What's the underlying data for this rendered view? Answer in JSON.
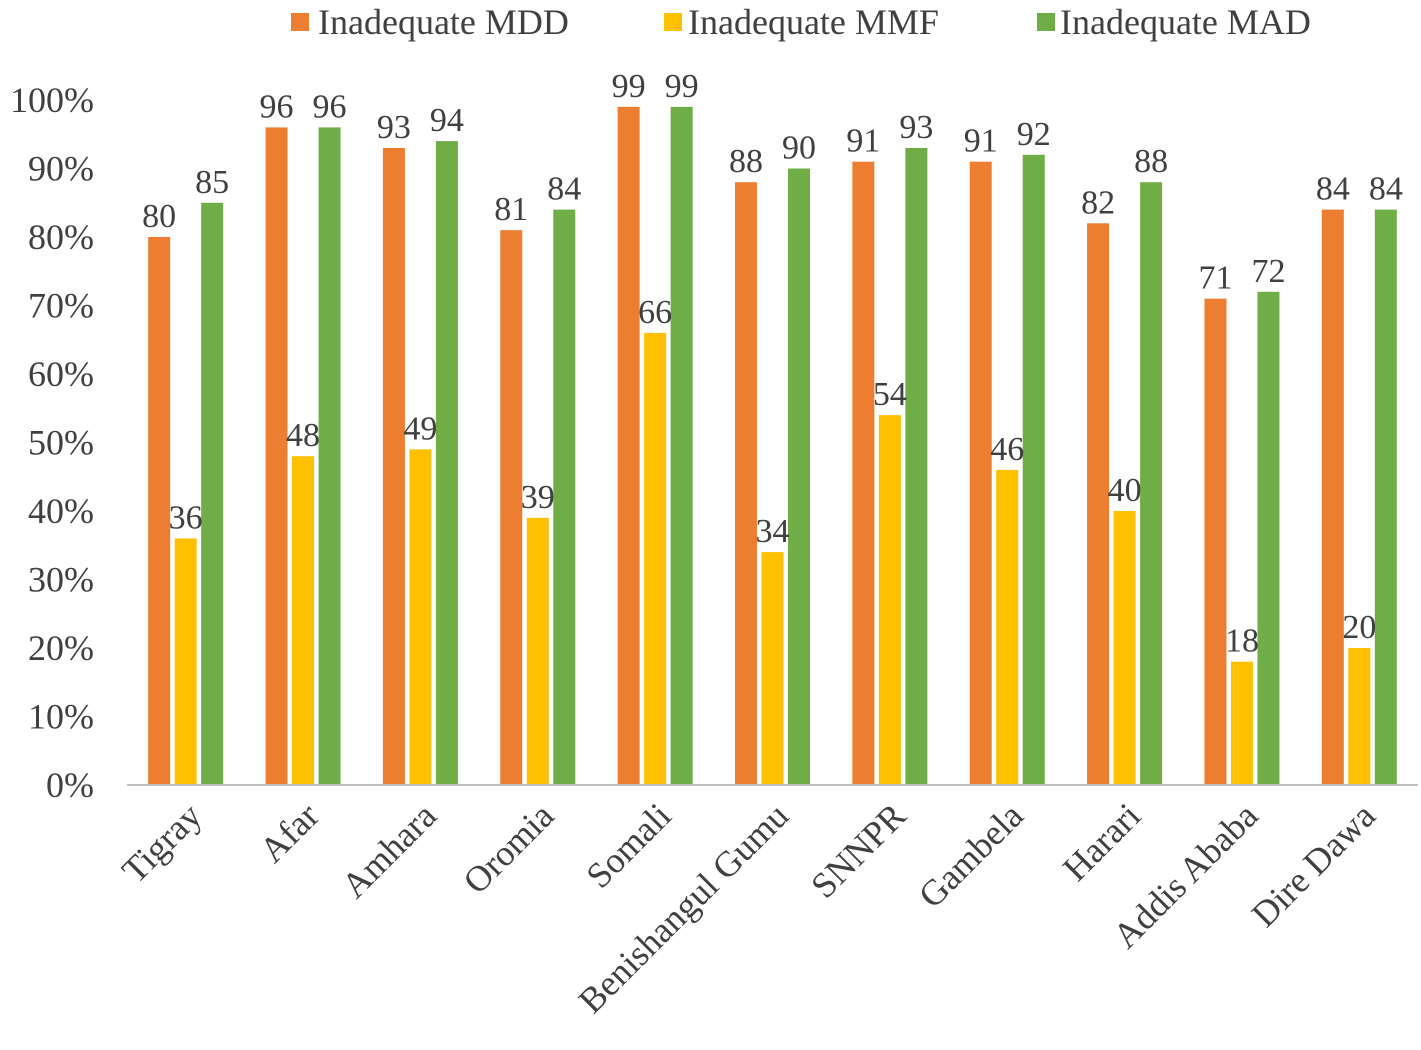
{
  "chart_data": {
    "type": "bar",
    "title": "",
    "xlabel": "",
    "ylabel": "",
    "ylim": [
      0,
      100
    ],
    "yticks": [
      "0%",
      "10%",
      "20%",
      "30%",
      "40%",
      "50%",
      "60%",
      "70%",
      "80%",
      "90%",
      "100%"
    ],
    "grid": false,
    "legend_position": "top",
    "categories": [
      "Tigray",
      "Afar",
      "Amhara",
      "Oromia",
      "Somali",
      "Benishangul Gumu",
      "SNNPR",
      "Gambela",
      "Harari",
      "Addis Ababa",
      "Dire Dawa"
    ],
    "series": [
      {
        "name": "Inadequate MDD",
        "color": "#ED7D31",
        "values": [
          80,
          96,
          93,
          81,
          99,
          88,
          91,
          91,
          82,
          71,
          84
        ],
        "labels": [
          "80",
          "96",
          "93",
          "81",
          "99",
          "88",
          "91",
          "91",
          "82",
          "71",
          "84"
        ]
      },
      {
        "name": "Inadequate MMF",
        "color": "#FFC000",
        "values": [
          36,
          48,
          49,
          39,
          66,
          34,
          54,
          46,
          40,
          18,
          20
        ],
        "labels": [
          "36",
          "48",
          "49",
          "39",
          "66",
          "34",
          "54",
          "46",
          "40",
          "18",
          "20"
        ]
      },
      {
        "name": "Inadequate MAD",
        "color": "#70AD47",
        "values": [
          85,
          96,
          94,
          84,
          99,
          90,
          93,
          92,
          88,
          72,
          84
        ],
        "labels": [
          "85",
          "96",
          "94",
          "84",
          "99",
          "90",
          "93",
          "92",
          "88",
          "72",
          "84"
        ]
      }
    ]
  }
}
